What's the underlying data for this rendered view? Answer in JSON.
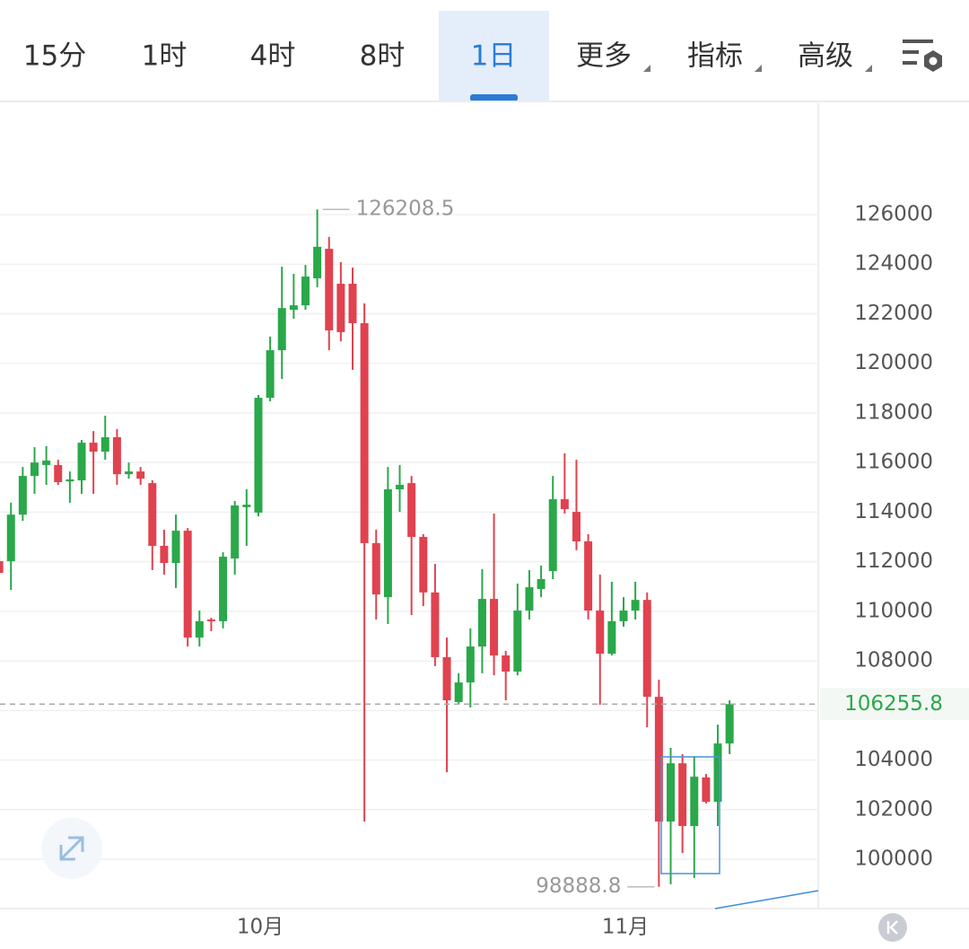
{
  "tabs": [
    {
      "label": "15分"
    },
    {
      "label": "1时"
    },
    {
      "label": "4时"
    },
    {
      "label": "8时"
    },
    {
      "label": "1日",
      "active": true
    },
    {
      "label": "更多",
      "dropdown": true
    },
    {
      "label": "指标",
      "dropdown": true
    },
    {
      "label": "高级",
      "dropdown": true
    }
  ],
  "chart_data": {
    "type": "candlestick",
    "up_color": "#2aa84a",
    "down_color": "#e0424f",
    "grid": true,
    "ylim": [
      98010,
      130490
    ],
    "yticks": [
      100000,
      102000,
      104000,
      106000,
      108000,
      110000,
      112000,
      114000,
      116000,
      118000,
      120000,
      122000,
      124000,
      126000
    ],
    "high_index": 27,
    "low_index": 56,
    "categories": [
      null,
      null,
      null,
      null,
      null,
      null,
      null,
      null,
      null,
      null,
      null,
      null,
      null,
      null,
      null,
      null,
      null,
      null,
      null,
      null,
      null,
      null,
      "10月",
      null,
      null,
      null,
      null,
      null,
      null,
      null,
      null,
      null,
      null,
      null,
      null,
      null,
      null,
      null,
      null,
      null,
      null,
      null,
      null,
      null,
      null,
      null,
      null,
      null,
      null,
      null,
      null,
      null,
      null,
      "11月",
      null,
      null,
      null,
      null,
      null,
      null,
      null,
      null,
      null
    ],
    "ohlc": [
      [
        112020,
        112200,
        111480,
        111550
      ],
      [
        112020,
        114380,
        110860,
        113900
      ],
      [
        113900,
        115820,
        113650,
        115460
      ],
      [
        115460,
        116620,
        114740,
        116000
      ],
      [
        115900,
        116660,
        115100,
        116080
      ],
      [
        115900,
        116110,
        115100,
        115210
      ],
      [
        115240,
        115640,
        114380,
        115320
      ],
      [
        115280,
        116910,
        114740,
        116800
      ],
      [
        116800,
        117270,
        114740,
        116440
      ],
      [
        116440,
        117890,
        116110,
        117020
      ],
      [
        117020,
        117350,
        115100,
        115530
      ],
      [
        115530,
        116000,
        115350,
        115640
      ],
      [
        115640,
        115820,
        115100,
        115350
      ],
      [
        115170,
        115280,
        111660,
        112640
      ],
      [
        112640,
        113290,
        111480,
        111950
      ],
      [
        111950,
        113900,
        110940,
        113250
      ],
      [
        113250,
        113360,
        108580,
        108940
      ],
      [
        108940,
        110030,
        108580,
        109600
      ],
      [
        109670,
        109740,
        109200,
        109600
      ],
      [
        109600,
        112380,
        109310,
        112200
      ],
      [
        112130,
        114450,
        111480,
        114270
      ],
      [
        114200,
        114920,
        112640,
        114300
      ],
      [
        113980,
        118720,
        113830,
        118610
      ],
      [
        118610,
        121080,
        118470,
        120530
      ],
      [
        120530,
        123900,
        119370,
        122230
      ],
      [
        122160,
        123610,
        121800,
        122340
      ],
      [
        122340,
        123970,
        122160,
        123500
      ],
      [
        123430,
        126208.5,
        123070,
        124700
      ],
      [
        124620,
        125100,
        120530,
        121330
      ],
      [
        123210,
        124080,
        120890,
        121260
      ],
      [
        123210,
        123860,
        119740,
        121620
      ],
      [
        121620,
        122420,
        101520,
        112750
      ],
      [
        112750,
        113290,
        109670,
        110680
      ],
      [
        110570,
        115820,
        109490,
        114920
      ],
      [
        114920,
        115900,
        114010,
        115100
      ],
      [
        115170,
        115460,
        109850,
        113000
      ],
      [
        113000,
        113110,
        110210,
        110760
      ],
      [
        110760,
        111910,
        107790,
        108150
      ],
      [
        108150,
        108940,
        103510,
        106410
      ],
      [
        106340,
        107500,
        106230,
        107130
      ],
      [
        107130,
        109310,
        106120,
        108580
      ],
      [
        108580,
        111700,
        107500,
        110500
      ],
      [
        110500,
        113940,
        107420,
        108220
      ],
      [
        108220,
        108400,
        106410,
        107570
      ],
      [
        107570,
        111120,
        107420,
        110030
      ],
      [
        110030,
        111660,
        109670,
        110970
      ],
      [
        110900,
        111840,
        110570,
        111300
      ],
      [
        111620,
        115460,
        111300,
        114520
      ],
      [
        114520,
        116370,
        113940,
        114120
      ],
      [
        114010,
        116110,
        112460,
        112820
      ],
      [
        112820,
        113110,
        109670,
        110030
      ],
      [
        110030,
        111480,
        106230,
        108290
      ],
      [
        108290,
        111190,
        108220,
        109600
      ],
      [
        109600,
        110570,
        109380,
        110030
      ],
      [
        110030,
        111190,
        109670,
        110460
      ],
      [
        110460,
        110760,
        105320,
        106550
      ],
      [
        106550,
        107240,
        98888.8,
        101520
      ],
      [
        101520,
        104490,
        98990,
        103870
      ],
      [
        103870,
        104240,
        100250,
        101340
      ],
      [
        101340,
        104160,
        99240,
        103330
      ],
      [
        103300,
        103440,
        102250,
        102320
      ],
      [
        102320,
        105430,
        101340,
        104670
      ],
      [
        104670,
        106410,
        104240,
        106255.8
      ]
    ]
  }
}
